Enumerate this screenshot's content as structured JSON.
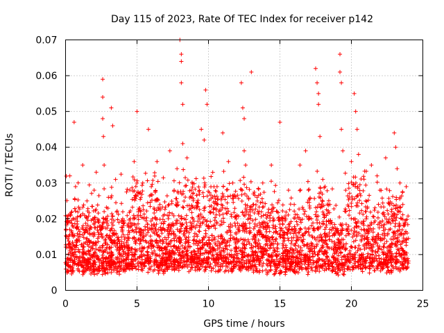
{
  "chart_data": {
    "type": "scatter",
    "title": "Day 115 of 2023, Rate Of TEC Index for receiver p142",
    "xlabel": "GPS time / hours",
    "ylabel": "ROTI / TECUs",
    "xlim": [
      0,
      25
    ],
    "ylim": [
      0,
      0.07
    ],
    "x_ticks": [
      0,
      5,
      10,
      15,
      20,
      25
    ],
    "x_tick_labels": [
      "0",
      "5",
      "10",
      "15",
      "20",
      "25"
    ],
    "y_ticks": [
      0,
      0.01,
      0.02,
      0.03,
      0.04,
      0.05,
      0.06,
      0.07
    ],
    "y_tick_labels": [
      "0",
      "0.01",
      "0.02",
      "0.03",
      "0.04",
      "0.05",
      "0.06",
      "0.07"
    ],
    "grid": true,
    "marker": "plus",
    "color": "#ff0000",
    "data_range_x": [
      0,
      24
    ],
    "series": [
      {
        "name": "ROTI",
        "x": [
          0.1,
          0.2,
          0.3,
          0.35,
          0.6,
          0.7,
          1.0,
          1.2,
          1.5,
          1.8,
          2.0,
          2.4,
          2.6,
          2.6,
          2.6,
          2.65,
          2.7,
          2.7,
          2.8,
          3.0,
          3.2,
          3.3,
          3.3,
          3.5,
          4.0,
          4.5,
          4.8,
          5.0,
          5.1,
          5.2,
          5.4,
          5.8,
          6.0,
          6.0,
          6.4,
          6.6,
          7.0,
          7.3,
          7.6,
          7.8,
          8.0,
          8.1,
          8.1,
          8.1,
          8.2,
          8.2,
          8.3,
          8.5,
          8.8,
          9.0,
          9.5,
          9.7,
          9.8,
          9.9,
          10.0,
          10.3,
          10.6,
          10.9,
          11.0,
          11.4,
          11.7,
          12.0,
          12.3,
          12.4,
          12.5,
          12.5,
          12.6,
          13.0,
          13.0,
          13.4,
          13.8,
          14.0,
          14.4,
          14.8,
          15.0,
          15.2,
          15.6,
          16.0,
          16.4,
          16.8,
          17.0,
          17.2,
          17.5,
          17.6,
          17.7,
          17.7,
          17.8,
          18.0,
          18.5,
          19.0,
          19.2,
          19.2,
          19.3,
          19.3,
          19.4,
          19.6,
          20.0,
          20.2,
          20.3,
          20.4,
          20.5,
          20.6,
          21.0,
          21.4,
          21.8,
          22.0,
          22.4,
          22.8,
          23.0,
          23.1,
          23.2,
          23.4,
          23.6,
          23.9
        ],
        "y": [
          0.012,
          0.021,
          0.032,
          0.009,
          0.047,
          0.029,
          0.015,
          0.035,
          0.025,
          0.012,
          0.028,
          0.018,
          0.059,
          0.054,
          0.048,
          0.043,
          0.035,
          0.022,
          0.011,
          0.026,
          0.051,
          0.046,
          0.016,
          0.031,
          0.02,
          0.028,
          0.036,
          0.05,
          0.022,
          0.013,
          0.03,
          0.045,
          0.017,
          0.029,
          0.036,
          0.024,
          0.012,
          0.039,
          0.028,
          0.034,
          0.07,
          0.066,
          0.064,
          0.058,
          0.052,
          0.041,
          0.02,
          0.037,
          0.028,
          0.015,
          0.045,
          0.042,
          0.056,
          0.052,
          0.018,
          0.033,
          0.029,
          0.024,
          0.044,
          0.036,
          0.03,
          0.021,
          0.058,
          0.051,
          0.048,
          0.039,
          0.035,
          0.061,
          0.012,
          0.026,
          0.03,
          0.018,
          0.035,
          0.022,
          0.047,
          0.013,
          0.028,
          0.024,
          0.035,
          0.039,
          0.028,
          0.02,
          0.062,
          0.058,
          0.055,
          0.052,
          0.043,
          0.031,
          0.024,
          0.017,
          0.066,
          0.061,
          0.058,
          0.045,
          0.039,
          0.028,
          0.036,
          0.055,
          0.05,
          0.045,
          0.038,
          0.027,
          0.025,
          0.035,
          0.032,
          0.028,
          0.037,
          0.022,
          0.044,
          0.04,
          0.034,
          0.03,
          0.024,
          0.016
        ]
      }
    ]
  }
}
